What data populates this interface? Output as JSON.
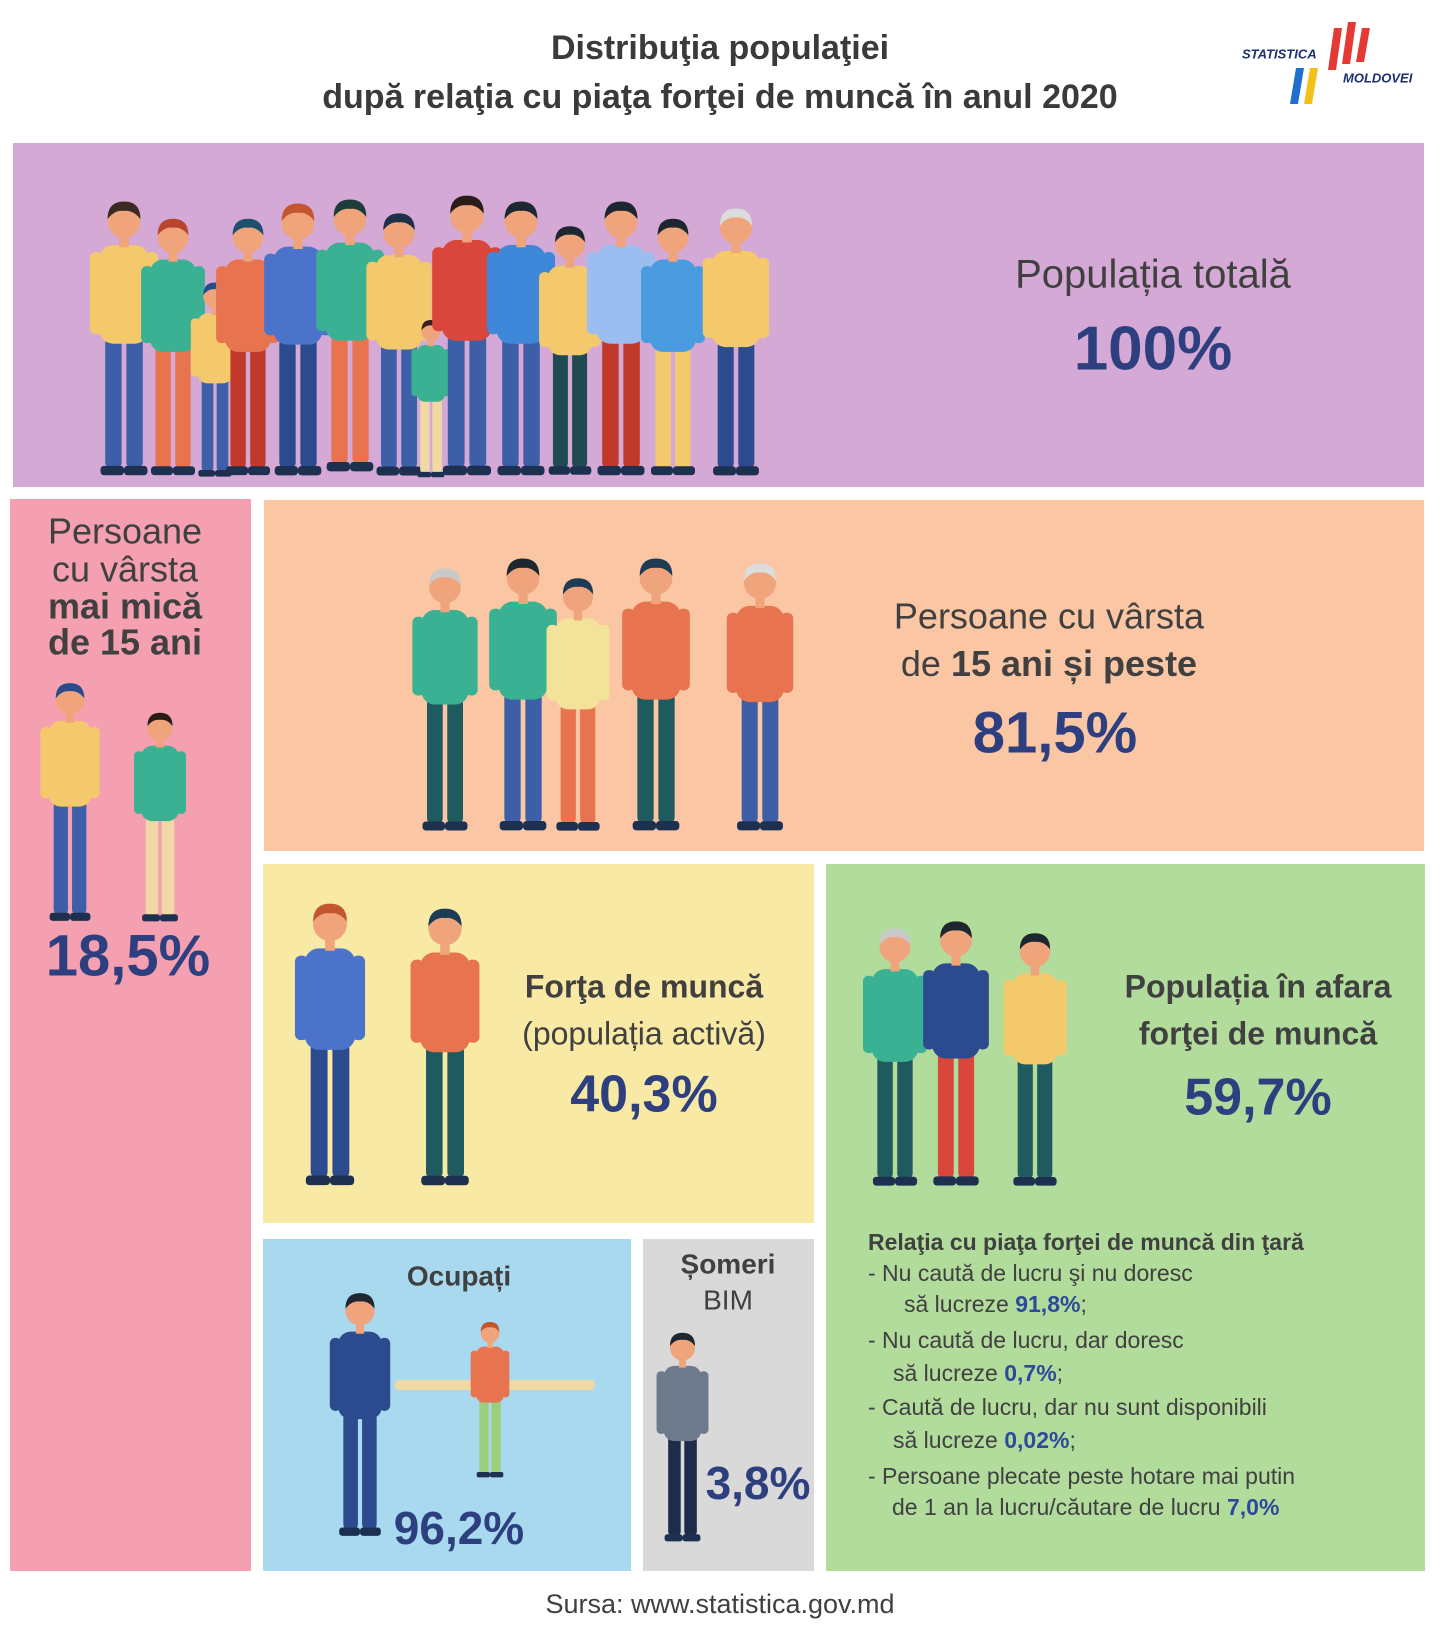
{
  "header": {
    "title": [
      "Distribuţia populaţiei",
      "după relaţia cu piaţa forţei de muncă în anul 2020"
    ],
    "logo": [
      "STATISTICA",
      "MOLDOVEI"
    ]
  },
  "total": {
    "label": "Populația totală",
    "value": "100%"
  },
  "under15": {
    "label": [
      "Persoane",
      "cu vârsta"
    ],
    "label_bold": [
      "mai mică",
      "de 15 ani"
    ],
    "value": "18,5%"
  },
  "over15": {
    "label": "Persoane cu vârsta",
    "label2": "de",
    "label_bold": "15 ani și peste",
    "value": "81,5%"
  },
  "labour": {
    "label": "Forţa de muncă",
    "sublabel": "(populația activă)",
    "value": "40,3%"
  },
  "inactive": {
    "label": [
      "Populația în afara",
      "forţei de muncă"
    ],
    "value": "59,7%",
    "list": {
      "title": "Relaţia cu piaţa forţei de muncă din ţară",
      "items": [
        {
          "lines": [
            "-  Nu caută de lucru şi nu doresc",
            "să lucreze"
          ],
          "value": "91,8%",
          "end": ";"
        },
        {
          "lines": [
            "-  Nu caută de lucru, dar doresc",
            "să lucreze"
          ],
          "value": "0,7%",
          "end": ";"
        },
        {
          "lines": [
            "-  Caută de lucru, dar nu sunt disponibili",
            "să lucreze"
          ],
          "value": "0,02%",
          "end": ";"
        },
        {
          "lines": [
            "-  Persoane plecate peste hotare mai putin",
            "de 1 an la lucru/căutare de lucru"
          ],
          "value": "7,0%"
        }
      ]
    }
  },
  "employed": {
    "label": "Ocupați",
    "value": "96,2%"
  },
  "unemployed": {
    "label": [
      "Șomeri",
      "BIM"
    ],
    "value": "3,8%"
  },
  "source": "Sursa: www.statistica.gov.md"
}
